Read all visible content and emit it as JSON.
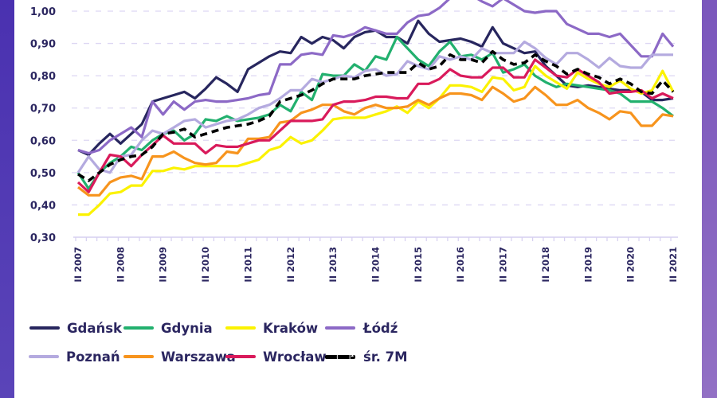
{
  "chart_data": {
    "type": "line",
    "title": "",
    "xlabel": "",
    "ylabel": "",
    "ylim": [
      0.3,
      1.0
    ],
    "yticks": [
      "0,30",
      "0,40",
      "0,50",
      "0,60",
      "0,70",
      "0,80",
      "0,90",
      "1,00"
    ],
    "xticks": [
      "II 2007",
      "II 2008",
      "II 2009",
      "II 2010",
      "II 2011",
      "II 2012",
      "II 2013",
      "II 2014",
      "II 2015",
      "II 2016",
      "II 2017",
      "II 2018",
      "II 2019",
      "II 2020",
      "II 2021"
    ],
    "x_frequency": "quarterly, II 2007 – II 2021",
    "grid": "horizontal dashed",
    "legend_placement": "bottom",
    "series": [
      {
        "name": "Gdańsk",
        "color": "#27265e",
        "dashed": false,
        "values": [
          0.57,
          0.555,
          0.59,
          0.62,
          0.59,
          0.62,
          0.65,
          0.72,
          0.73,
          0.74,
          0.75,
          0.73,
          0.76,
          0.795,
          0.775,
          0.75,
          0.82,
          0.84,
          0.86,
          0.875,
          0.87,
          0.92,
          0.9,
          0.92,
          0.91,
          0.885,
          0.92,
          0.935,
          0.94,
          0.92,
          0.92,
          0.9,
          0.97,
          0.93,
          0.905,
          0.91,
          0.915,
          0.905,
          0.89,
          0.95,
          0.9,
          0.885,
          0.87,
          0.875,
          0.83,
          0.8,
          0.77,
          0.765,
          0.77,
          0.765,
          0.76,
          0.755,
          0.755,
          0.75,
          0.725,
          0.725,
          0.73
        ]
      },
      {
        "name": "Gdynia",
        "color": "#22b06e",
        "dashed": false,
        "values": [
          0.5,
          0.45,
          0.5,
          0.53,
          0.55,
          0.58,
          0.57,
          0.6,
          0.62,
          0.63,
          0.6,
          0.62,
          0.665,
          0.66,
          0.675,
          0.66,
          0.665,
          0.67,
          0.68,
          0.71,
          0.69,
          0.75,
          0.725,
          0.805,
          0.8,
          0.8,
          0.835,
          0.815,
          0.86,
          0.85,
          0.92,
          0.885,
          0.85,
          0.83,
          0.875,
          0.905,
          0.86,
          0.865,
          0.85,
          0.87,
          0.81,
          0.82,
          0.835,
          0.8,
          0.78,
          0.765,
          0.775,
          0.77,
          0.765,
          0.76,
          0.755,
          0.745,
          0.72,
          0.72,
          0.72,
          0.7,
          0.675
        ]
      },
      {
        "name": "Kraków",
        "color": "#fbf200",
        "dashed": false,
        "values": [
          0.37,
          0.37,
          0.4,
          0.435,
          0.44,
          0.46,
          0.46,
          0.505,
          0.505,
          0.515,
          0.51,
          0.52,
          0.52,
          0.52,
          0.52,
          0.52,
          0.53,
          0.54,
          0.57,
          0.58,
          0.61,
          0.59,
          0.6,
          0.63,
          0.665,
          0.67,
          0.67,
          0.67,
          0.68,
          0.69,
          0.705,
          0.685,
          0.72,
          0.7,
          0.73,
          0.77,
          0.77,
          0.765,
          0.75,
          0.795,
          0.79,
          0.755,
          0.765,
          0.83,
          0.8,
          0.78,
          0.76,
          0.81,
          0.79,
          0.775,
          0.765,
          0.785,
          0.76,
          0.745,
          0.755,
          0.815,
          0.75
        ]
      },
      {
        "name": "Łódź",
        "color": "#8c69c6",
        "dashed": false,
        "values": [
          0.57,
          0.56,
          0.57,
          0.6,
          0.62,
          0.64,
          0.61,
          0.72,
          0.68,
          0.72,
          0.695,
          0.72,
          0.725,
          0.72,
          0.72,
          0.725,
          0.73,
          0.74,
          0.745,
          0.835,
          0.835,
          0.865,
          0.87,
          0.865,
          0.925,
          0.92,
          0.93,
          0.95,
          0.94,
          0.93,
          0.93,
          0.965,
          0.985,
          0.99,
          1.01,
          1.04,
          1.06,
          1.05,
          1.03,
          1.015,
          1.04,
          1.02,
          1.0,
          0.995,
          1.0,
          1.0,
          0.96,
          0.945,
          0.93,
          0.93,
          0.92,
          0.93,
          0.895,
          0.86,
          0.86,
          0.93,
          0.89
        ]
      },
      {
        "name": "Poznań",
        "color": "#b4aadf",
        "dashed": false,
        "values": [
          0.5,
          0.55,
          0.51,
          0.5,
          0.55,
          0.555,
          0.6,
          0.63,
          0.62,
          0.64,
          0.66,
          0.665,
          0.64,
          0.65,
          0.66,
          0.665,
          0.68,
          0.7,
          0.71,
          0.73,
          0.755,
          0.755,
          0.79,
          0.78,
          0.79,
          0.8,
          0.795,
          0.815,
          0.82,
          0.8,
          0.805,
          0.845,
          0.83,
          0.82,
          0.86,
          0.85,
          0.86,
          0.85,
          0.885,
          0.87,
          0.87,
          0.87,
          0.905,
          0.885,
          0.855,
          0.835,
          0.87,
          0.87,
          0.85,
          0.825,
          0.855,
          0.83,
          0.825,
          0.825,
          0.865,
          0.865,
          0.865
        ]
      },
      {
        "name": "Warszawa",
        "color": "#f7941d",
        "dashed": false,
        "values": [
          0.455,
          0.43,
          0.43,
          0.47,
          0.485,
          0.49,
          0.48,
          0.55,
          0.55,
          0.565,
          0.545,
          0.53,
          0.525,
          0.53,
          0.565,
          0.56,
          0.605,
          0.605,
          0.61,
          0.655,
          0.66,
          0.685,
          0.695,
          0.71,
          0.71,
          0.69,
          0.68,
          0.7,
          0.71,
          0.7,
          0.7,
          0.705,
          0.725,
          0.71,
          0.73,
          0.745,
          0.745,
          0.74,
          0.725,
          0.765,
          0.745,
          0.72,
          0.73,
          0.765,
          0.74,
          0.71,
          0.71,
          0.725,
          0.7,
          0.685,
          0.665,
          0.69,
          0.685,
          0.645,
          0.645,
          0.68,
          0.675
        ]
      },
      {
        "name": "Wrocław",
        "color": "#d91a5b",
        "dashed": false,
        "values": [
          0.47,
          0.44,
          0.5,
          0.555,
          0.55,
          0.52,
          0.555,
          0.585,
          0.615,
          0.59,
          0.59,
          0.59,
          0.56,
          0.585,
          0.58,
          0.58,
          0.59,
          0.6,
          0.6,
          0.63,
          0.66,
          0.66,
          0.66,
          0.665,
          0.71,
          0.72,
          0.72,
          0.725,
          0.735,
          0.735,
          0.73,
          0.73,
          0.775,
          0.775,
          0.79,
          0.82,
          0.8,
          0.795,
          0.795,
          0.825,
          0.825,
          0.795,
          0.795,
          0.85,
          0.825,
          0.8,
          0.795,
          0.82,
          0.8,
          0.78,
          0.745,
          0.75,
          0.75,
          0.755,
          0.73,
          0.745,
          0.73
        ]
      },
      {
        "name": "śr. 7M",
        "color": "#000000",
        "dashed": true,
        "values": [
          0.495,
          0.475,
          0.5,
          0.525,
          0.54,
          0.55,
          0.555,
          0.58,
          0.62,
          0.625,
          0.635,
          0.61,
          0.62,
          0.63,
          0.64,
          0.645,
          0.65,
          0.66,
          0.675,
          0.72,
          0.73,
          0.74,
          0.755,
          0.775,
          0.79,
          0.79,
          0.79,
          0.8,
          0.805,
          0.81,
          0.81,
          0.81,
          0.84,
          0.82,
          0.83,
          0.865,
          0.85,
          0.85,
          0.84,
          0.875,
          0.85,
          0.835,
          0.84,
          0.865,
          0.845,
          0.83,
          0.805,
          0.82,
          0.805,
          0.795,
          0.775,
          0.79,
          0.775,
          0.75,
          0.745,
          0.785,
          0.75
        ]
      }
    ]
  }
}
